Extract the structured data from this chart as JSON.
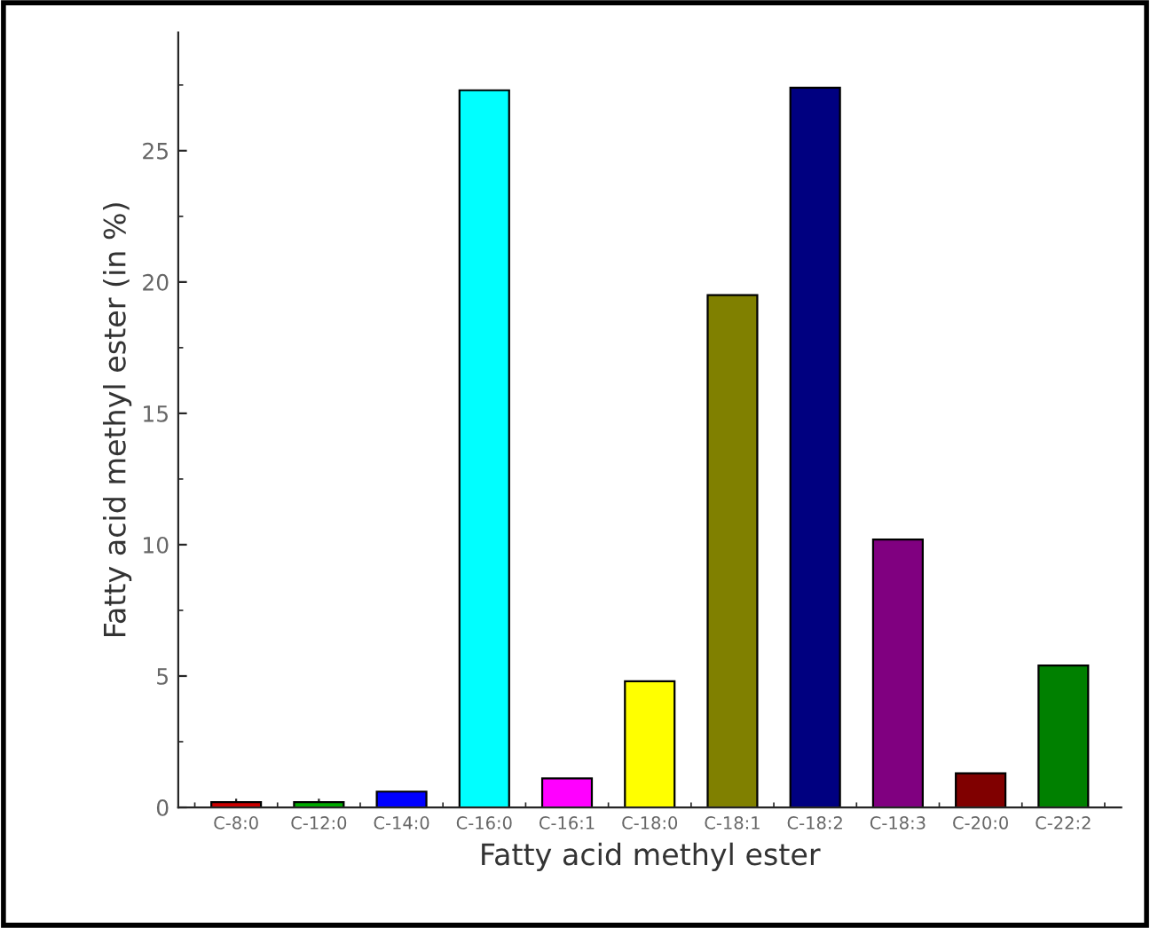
{
  "chart_data": {
    "type": "bar",
    "xlabel": "Fatty acid methyl ester",
    "ylabel": "Fatty acid methyl ester (in %)",
    "categories": [
      "C-8:0",
      "C-12:0",
      "C-14:0",
      "C-16:0",
      "C-16:1",
      "C-18:0",
      "C-18:1",
      "C-18:2",
      "C-18:3",
      "C-20:0",
      "C-22:2"
    ],
    "values": [
      0.2,
      0.2,
      0.6,
      27.3,
      1.1,
      4.8,
      19.5,
      27.4,
      10.2,
      1.3,
      5.4
    ],
    "colors": [
      "#cc0000",
      "#00aa00",
      "#0000ff",
      "#00ffff",
      "#ff00ff",
      "#ffff00",
      "#808000",
      "#000080",
      "#800080",
      "#800000",
      "#008000"
    ],
    "ylim": [
      0,
      29.5
    ],
    "yticks": [
      0,
      5,
      10,
      15,
      20,
      25
    ],
    "grid": false,
    "legend": false
  }
}
